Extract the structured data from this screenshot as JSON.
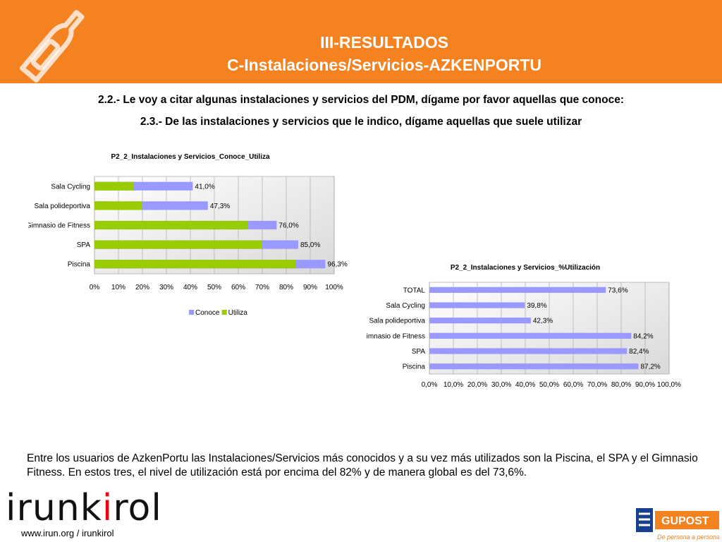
{
  "header": {
    "title_line1": "III-RESULTADOS",
    "title_line2": "C-Instalaciones/Servicios-AZKENPORTU",
    "color": "#f58220"
  },
  "questions": {
    "q1": "2.2.- Le voy a citar algunas instalaciones y servicios del PDM, dígame por favor aquellas que conoce:",
    "q2": "2.3.- De las instalaciones y servicios que le indico, dígame aquellas que suele utilizar"
  },
  "chart_data": [
    {
      "type": "bar",
      "orientation": "horizontal",
      "title": "P2_2_Instalaciones y Servicios_Conoce_Utiliza",
      "categories": [
        "Sala Cycling",
        "Sala polideportiva",
        "Gimnasio de Fitness",
        "SPA",
        "Piscina"
      ],
      "series": [
        {
          "name": "Conoce",
          "values": [
            41.0,
            47.3,
            76.0,
            85.0,
            96.3
          ],
          "color": "#9999ff"
        },
        {
          "name": "Utiliza",
          "values": [
            16.3,
            20.0,
            64.0,
            70.0,
            84.0
          ],
          "color": "#99cc00"
        }
      ],
      "data_labels": [
        "41,0%",
        "47,3%",
        "76,0%",
        "85,0%",
        "96,3%"
      ],
      "xticks": [
        "0%",
        "10%",
        "20%",
        "30%",
        "40%",
        "50%",
        "60%",
        "70%",
        "80%",
        "90%",
        "100%"
      ],
      "xlim": [
        0,
        100
      ],
      "grid": true,
      "legend": "bottom"
    },
    {
      "type": "bar",
      "orientation": "horizontal",
      "title": "P2_2_Instalaciones y Servicios_%Utilización",
      "categories": [
        "TOTAL",
        "Sala Cycling",
        "Sala polideportiva",
        "Gimnasio de Fitness",
        "SPA",
        "Piscina"
      ],
      "series": [
        {
          "values": [
            73.6,
            39.8,
            42.3,
            84.2,
            82.4,
            87.2
          ],
          "color": "#9999ff"
        }
      ],
      "data_labels": [
        "73,6%",
        "39,8%",
        "42,3%",
        "84,2%",
        "82,4%",
        "87,2%"
      ],
      "xticks": [
        "0,0%",
        "10,0%",
        "20,0%",
        "30,0%",
        "40,0%",
        "50,0%",
        "60,0%",
        "70,0%",
        "80,0%",
        "90,0%",
        "100,0%"
      ],
      "xlim": [
        0,
        100
      ],
      "grid": true
    }
  ],
  "description": "Entre los usuarios de AzkenPortu las Instalaciones/Servicios más conocidos y a su vez más utilizados son la Piscina, el SPA y el Gimnasio Fitness. En estos tres, el nivel de utilización está por encima del 82% y de manera global es del 73,6%.",
  "footer": {
    "logo_part1": "irunk",
    "logo_part2": "i",
    "logo_part3": "rol",
    "url": "www.irun.org / irunkirol",
    "gupost_name": "GUPOST",
    "gupost_slogan": "De persona a persona"
  }
}
